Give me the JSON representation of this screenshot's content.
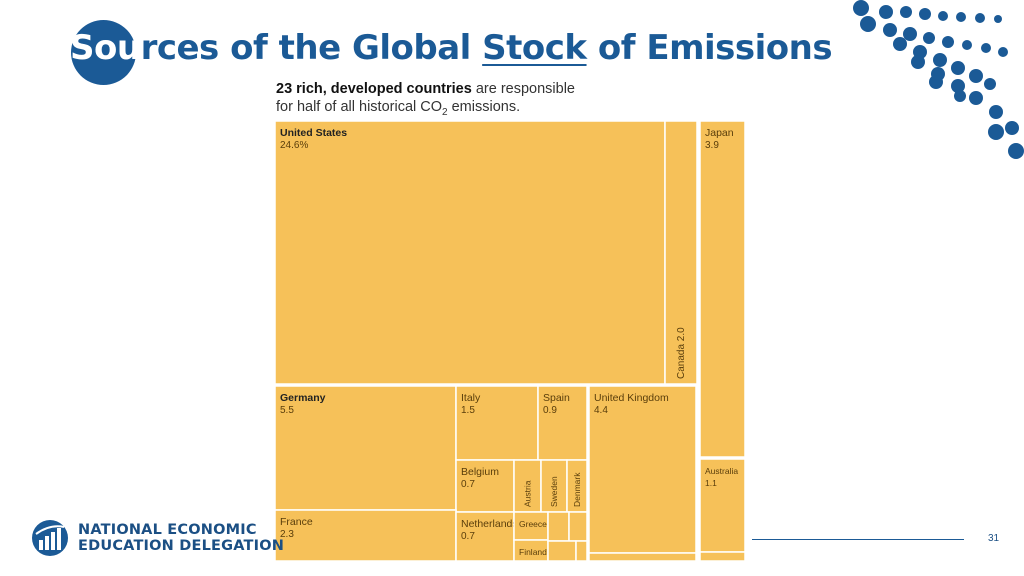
{
  "slide": {
    "title_part_a": "Sou",
    "title_part_b": "rces of the Global ",
    "title_part_c": "Stock",
    "title_part_d": " of Emissions",
    "page_number": "31",
    "org_line1": "NATIONAL ECONOMIC",
    "org_line2": "EDUCATION DELEGATION"
  },
  "chart_data": {
    "type": "treemap",
    "title_bold": "23 rich, developed countries",
    "title_rest": " are responsible",
    "subtitle_pre": "for half of all historical CO",
    "subtitle_sub": "2",
    "subtitle_post": " emissions.",
    "unit": "% of historical CO2 emissions",
    "items": [
      {
        "name": "United States",
        "value": "24.6%",
        "num": 24.6
      },
      {
        "name": "Japan",
        "value": "3.9",
        "num": 3.9
      },
      {
        "name": "Canada",
        "value": "2.0",
        "num": 2.0
      },
      {
        "name": "Germany",
        "value": "5.5",
        "num": 5.5
      },
      {
        "name": "Italy",
        "value": "1.5",
        "num": 1.5
      },
      {
        "name": "Spain",
        "value": "0.9",
        "num": 0.9
      },
      {
        "name": "United Kingdom",
        "value": "4.4",
        "num": 4.4
      },
      {
        "name": "Belgium",
        "value": "0.7",
        "num": 0.7
      },
      {
        "name": "Austria",
        "value": "",
        "num": 0.4
      },
      {
        "name": "Sweden",
        "value": "",
        "num": 0.3
      },
      {
        "name": "Denmark",
        "value": "",
        "num": 0.3
      },
      {
        "name": "France",
        "value": "2.3",
        "num": 2.3
      },
      {
        "name": "Netherlands",
        "value": "0.7",
        "num": 0.7
      },
      {
        "name": "Greece",
        "value": "",
        "num": 0.3
      },
      {
        "name": "Finland",
        "value": "",
        "num": 0.2
      },
      {
        "name": "Australia",
        "value": "1.1",
        "num": 1.1
      }
    ]
  },
  "colors": {
    "accent": "#1b5a96",
    "tile": "#f6c159",
    "tile_text": "#5a3e0b"
  }
}
